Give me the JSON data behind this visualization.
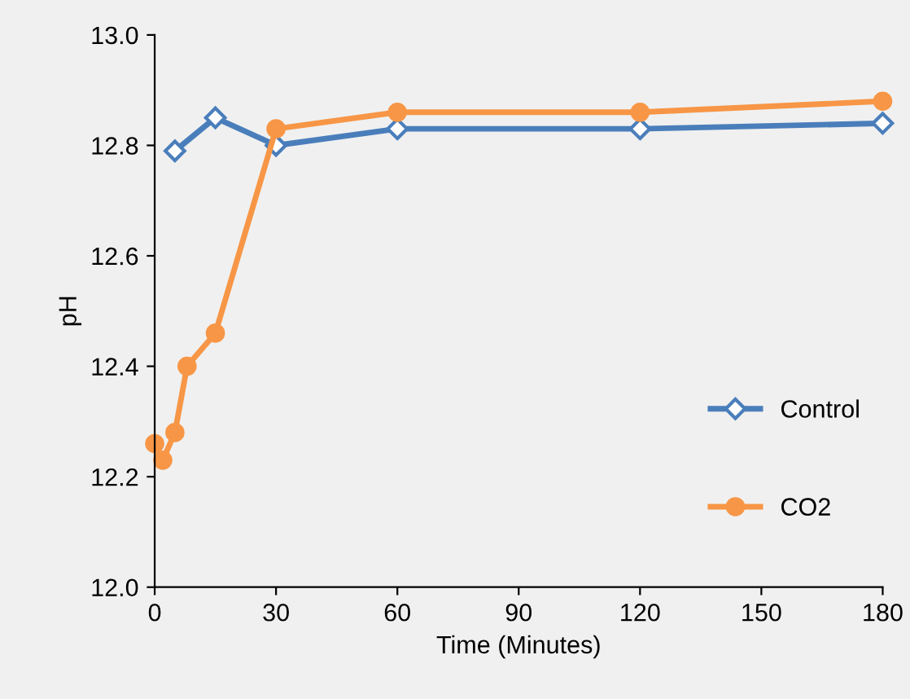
{
  "chart_data": {
    "type": "line",
    "xlabel": "Time (Minutes)",
    "ylabel": "pH",
    "xlim": [
      0,
      180
    ],
    "xticks": [
      0,
      30,
      60,
      90,
      120,
      150,
      180
    ],
    "ylim": [
      12.0,
      13.0
    ],
    "yticks": [
      {
        "value": 12.0,
        "label": "12.0"
      },
      {
        "value": 12.2,
        "label": "12.2"
      },
      {
        "value": 12.4,
        "label": "12.4"
      },
      {
        "value": 12.6,
        "label": "12.6"
      },
      {
        "value": 12.8,
        "label": "12.8"
      },
      {
        "value": 13.0,
        "label": "13.0"
      }
    ],
    "grid": false,
    "legend": "bottom right",
    "series": [
      {
        "name": "Control",
        "color": "#4a7ebb",
        "marker": "diamond",
        "x": [
          5,
          15,
          30,
          60,
          120,
          180
        ],
        "values": [
          12.79,
          12.85,
          12.8,
          12.83,
          12.83,
          12.84
        ]
      },
      {
        "name": "CO2",
        "color": "#f79646",
        "marker": "circle",
        "x": [
          0,
          2,
          5,
          8,
          15,
          30,
          60,
          120,
          180
        ],
        "values": [
          12.26,
          12.23,
          12.28,
          12.4,
          12.46,
          12.83,
          12.86,
          12.86,
          12.88
        ]
      }
    ]
  }
}
